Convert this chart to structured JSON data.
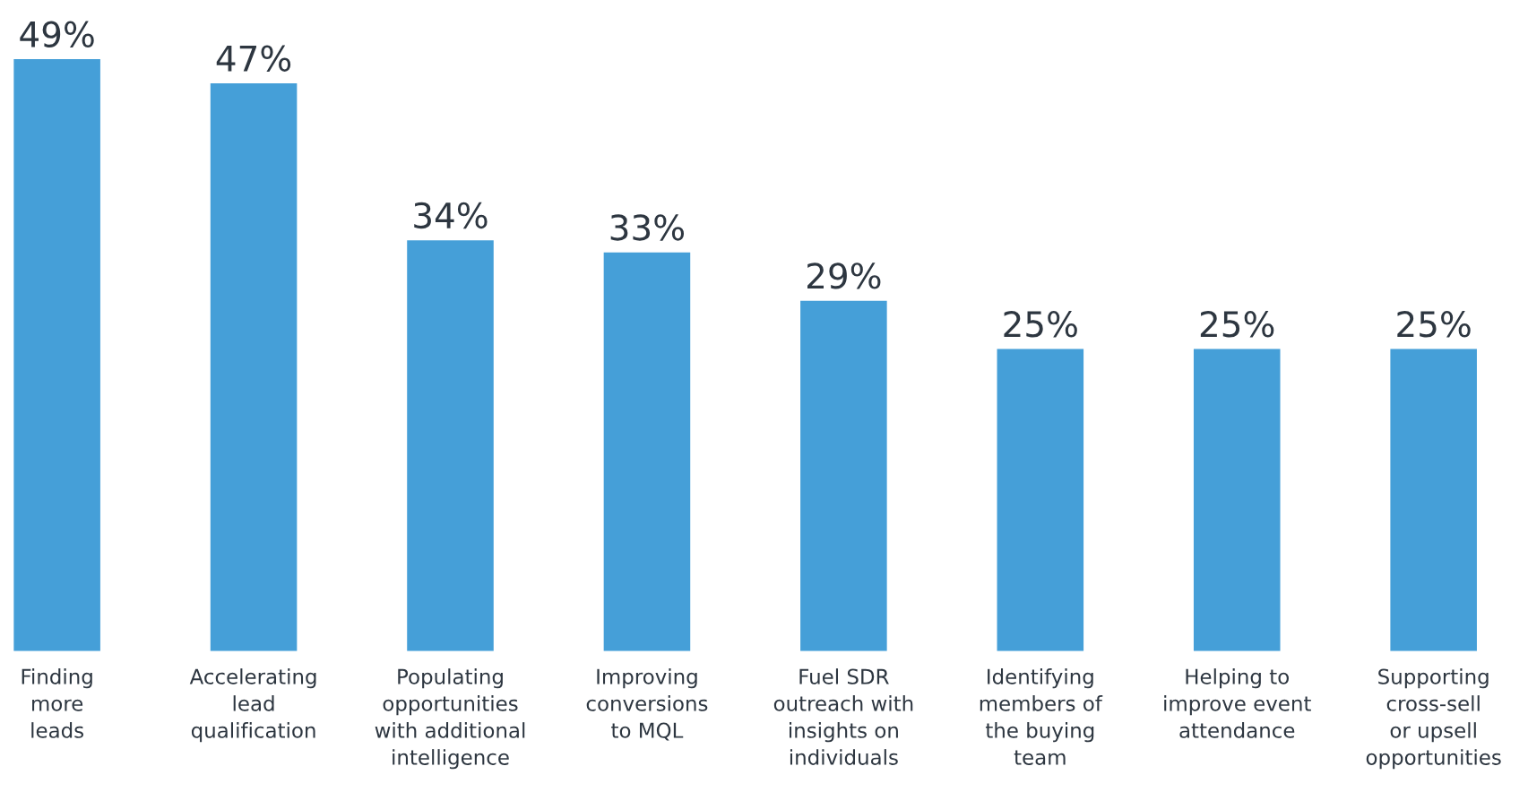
{
  "chart_data": {
    "type": "bar",
    "categories": [
      "Finding\nmore\nleads",
      "Accelerating\nlead\nqualification",
      "Populating\nopportunities\nwith additional\nintelligence",
      "Improving\nconversions\nto MQL",
      "Fuel SDR\noutreach with\ninsights on\nindividuals",
      "Identifying\nmembers of\nthe buying\nteam",
      "Helping to\nimprove event\nattendance",
      "Supporting\ncross-sell\nor upsell\nopportunities"
    ],
    "values": [
      49,
      47,
      34,
      33,
      29,
      25,
      25,
      25
    ],
    "value_labels": [
      "49%",
      "47%",
      "34%",
      "33%",
      "29%",
      "25%",
      "25%",
      "25%"
    ],
    "color": "#459fd8"
  }
}
